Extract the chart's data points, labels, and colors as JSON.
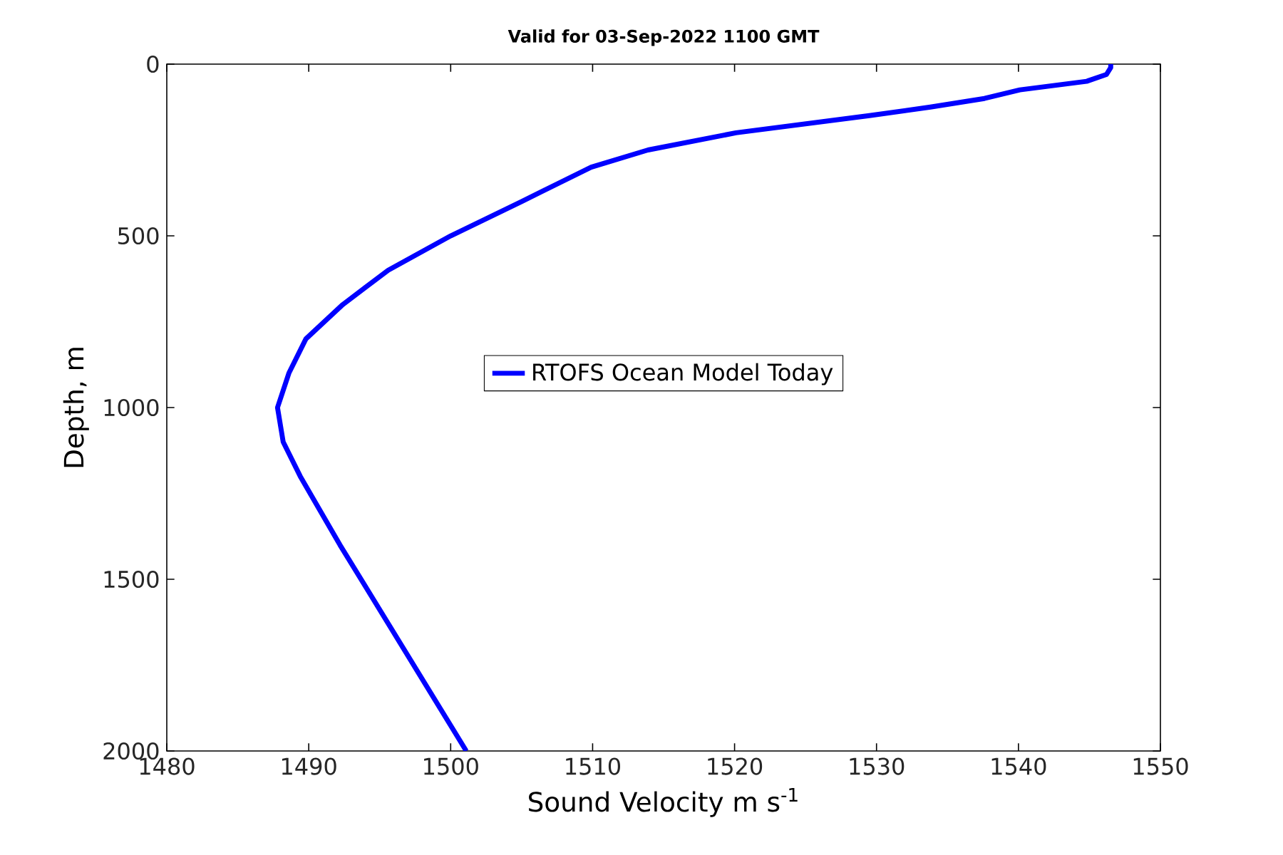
{
  "chart_data": {
    "type": "line",
    "title": "Valid for 03-Sep-2022 1100 GMT",
    "xlabel": "Sound Velocity m s$^{-1}$",
    "ylabel": "Depth, m",
    "x": [
      1546.5,
      1546.5,
      1546.2,
      1544.8,
      1540.1,
      1537.6,
      1533.8,
      1529.5,
      1520.1,
      1513.9,
      1509.9,
      1505.0,
      1500.0,
      1495.6,
      1492.4,
      1489.8,
      1488.6,
      1487.8,
      1488.2,
      1489.4,
      1492.2,
      1501.1
    ],
    "series": [
      {
        "name": "RTOFS Ocean Model Today",
        "color": "#0000ff",
        "values": [
          0,
          10,
          30,
          50,
          75,
          100,
          125,
          150,
          200,
          250,
          300,
          400,
          500,
          600,
          700,
          800,
          900,
          1000,
          1100,
          1200,
          1400,
          2000
        ]
      }
    ],
    "xlim": [
      1480,
      1550
    ],
    "xticks": [
      1480,
      1490,
      1500,
      1510,
      1520,
      1530,
      1540,
      1550
    ],
    "ylim": [
      2000,
      0
    ],
    "yticks": [
      0,
      500,
      1000,
      1500,
      2000
    ],
    "legend": "center",
    "grid": false,
    "marker": "none",
    "line_style": "solid"
  }
}
